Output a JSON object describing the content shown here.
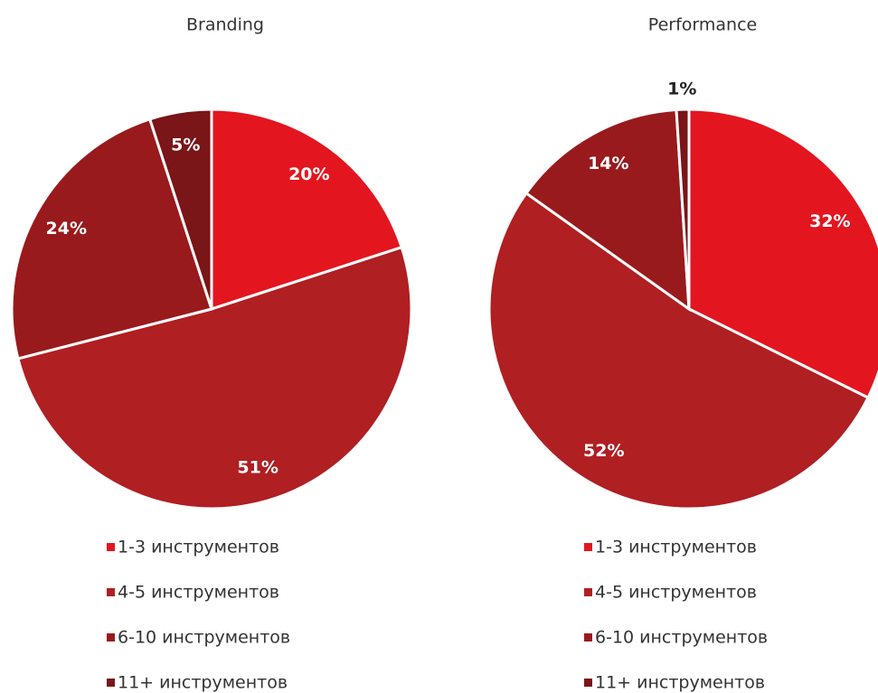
{
  "chart_data": [
    {
      "type": "pie",
      "title": "Branding",
      "categories": [
        "1-3 инструментов",
        "4-5 инструментов",
        "6-10 инструментов",
        "11+ инструментов"
      ],
      "values": [
        20,
        51,
        24,
        5
      ],
      "value_labels": [
        "20%",
        "51%",
        "24%",
        "5%"
      ],
      "colors": [
        "#e3161f",
        "#b01f22",
        "#991a1c",
        "#7a1518"
      ]
    },
    {
      "type": "pie",
      "title": "Performance",
      "categories": [
        "1-3 инструментов",
        "4-5 инструментов",
        "6-10 инструментов",
        "11+ инструментов"
      ],
      "values": [
        32,
        52,
        14,
        1
      ],
      "value_labels": [
        "32%",
        "52%",
        "14%",
        "1%"
      ],
      "colors": [
        "#e3161f",
        "#b01f22",
        "#991a1c",
        "#7a1518"
      ]
    }
  ]
}
